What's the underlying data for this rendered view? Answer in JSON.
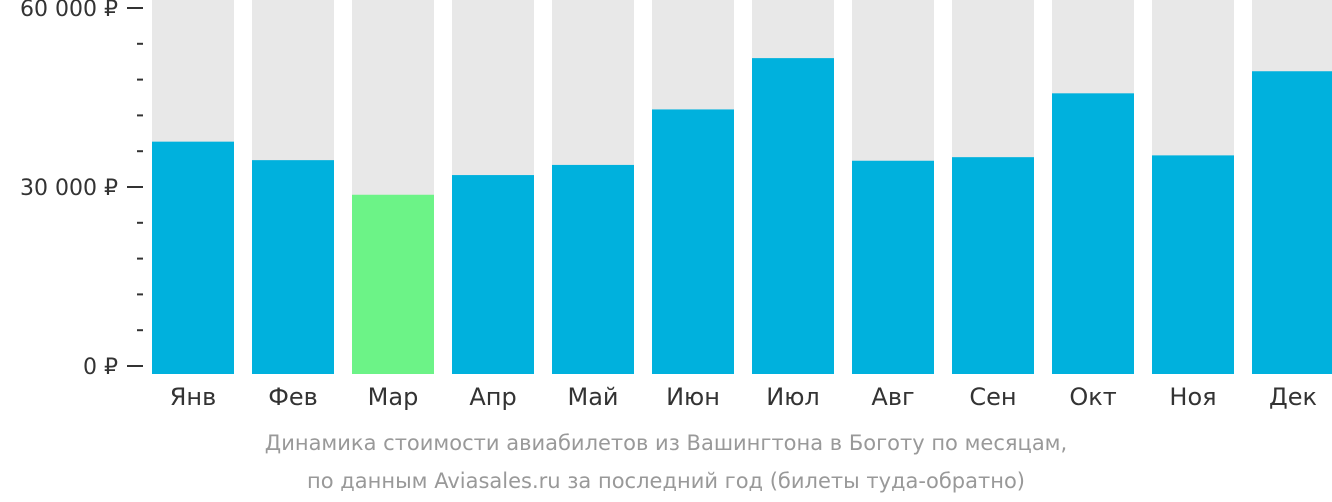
{
  "chart_data": {
    "type": "bar",
    "categories": [
      "Янв",
      "Фев",
      "Мар",
      "Апр",
      "Май",
      "Июн",
      "Июл",
      "Авг",
      "Сен",
      "Окт",
      "Ноя",
      "Дек"
    ],
    "values": [
      37600,
      34500,
      28700,
      32000,
      33700,
      43000,
      51600,
      34400,
      35000,
      45700,
      35300,
      49400
    ],
    "ylim": [
      0,
      60000
    ],
    "y_ticks": [
      {
        "value": 0,
        "label": "0 ₽"
      },
      {
        "value": 30000,
        "label": "30 000 ₽"
      },
      {
        "value": 60000,
        "label": "60 000 ₽"
      }
    ],
    "minor_tick_step": 6000,
    "highlight_index": 2,
    "colors": {
      "bar": "#00b1dd",
      "highlight": "#6cf387",
      "background_bar": "#e8e8e8",
      "axis": "#333333"
    },
    "grid": false,
    "caption_line1": "Динамика стоимости авиабилетов из Вашингтона в Боготу по месяцам,",
    "caption_line2": "по данным Aviasales.ru за последний год (билеты туда-обратно)"
  }
}
